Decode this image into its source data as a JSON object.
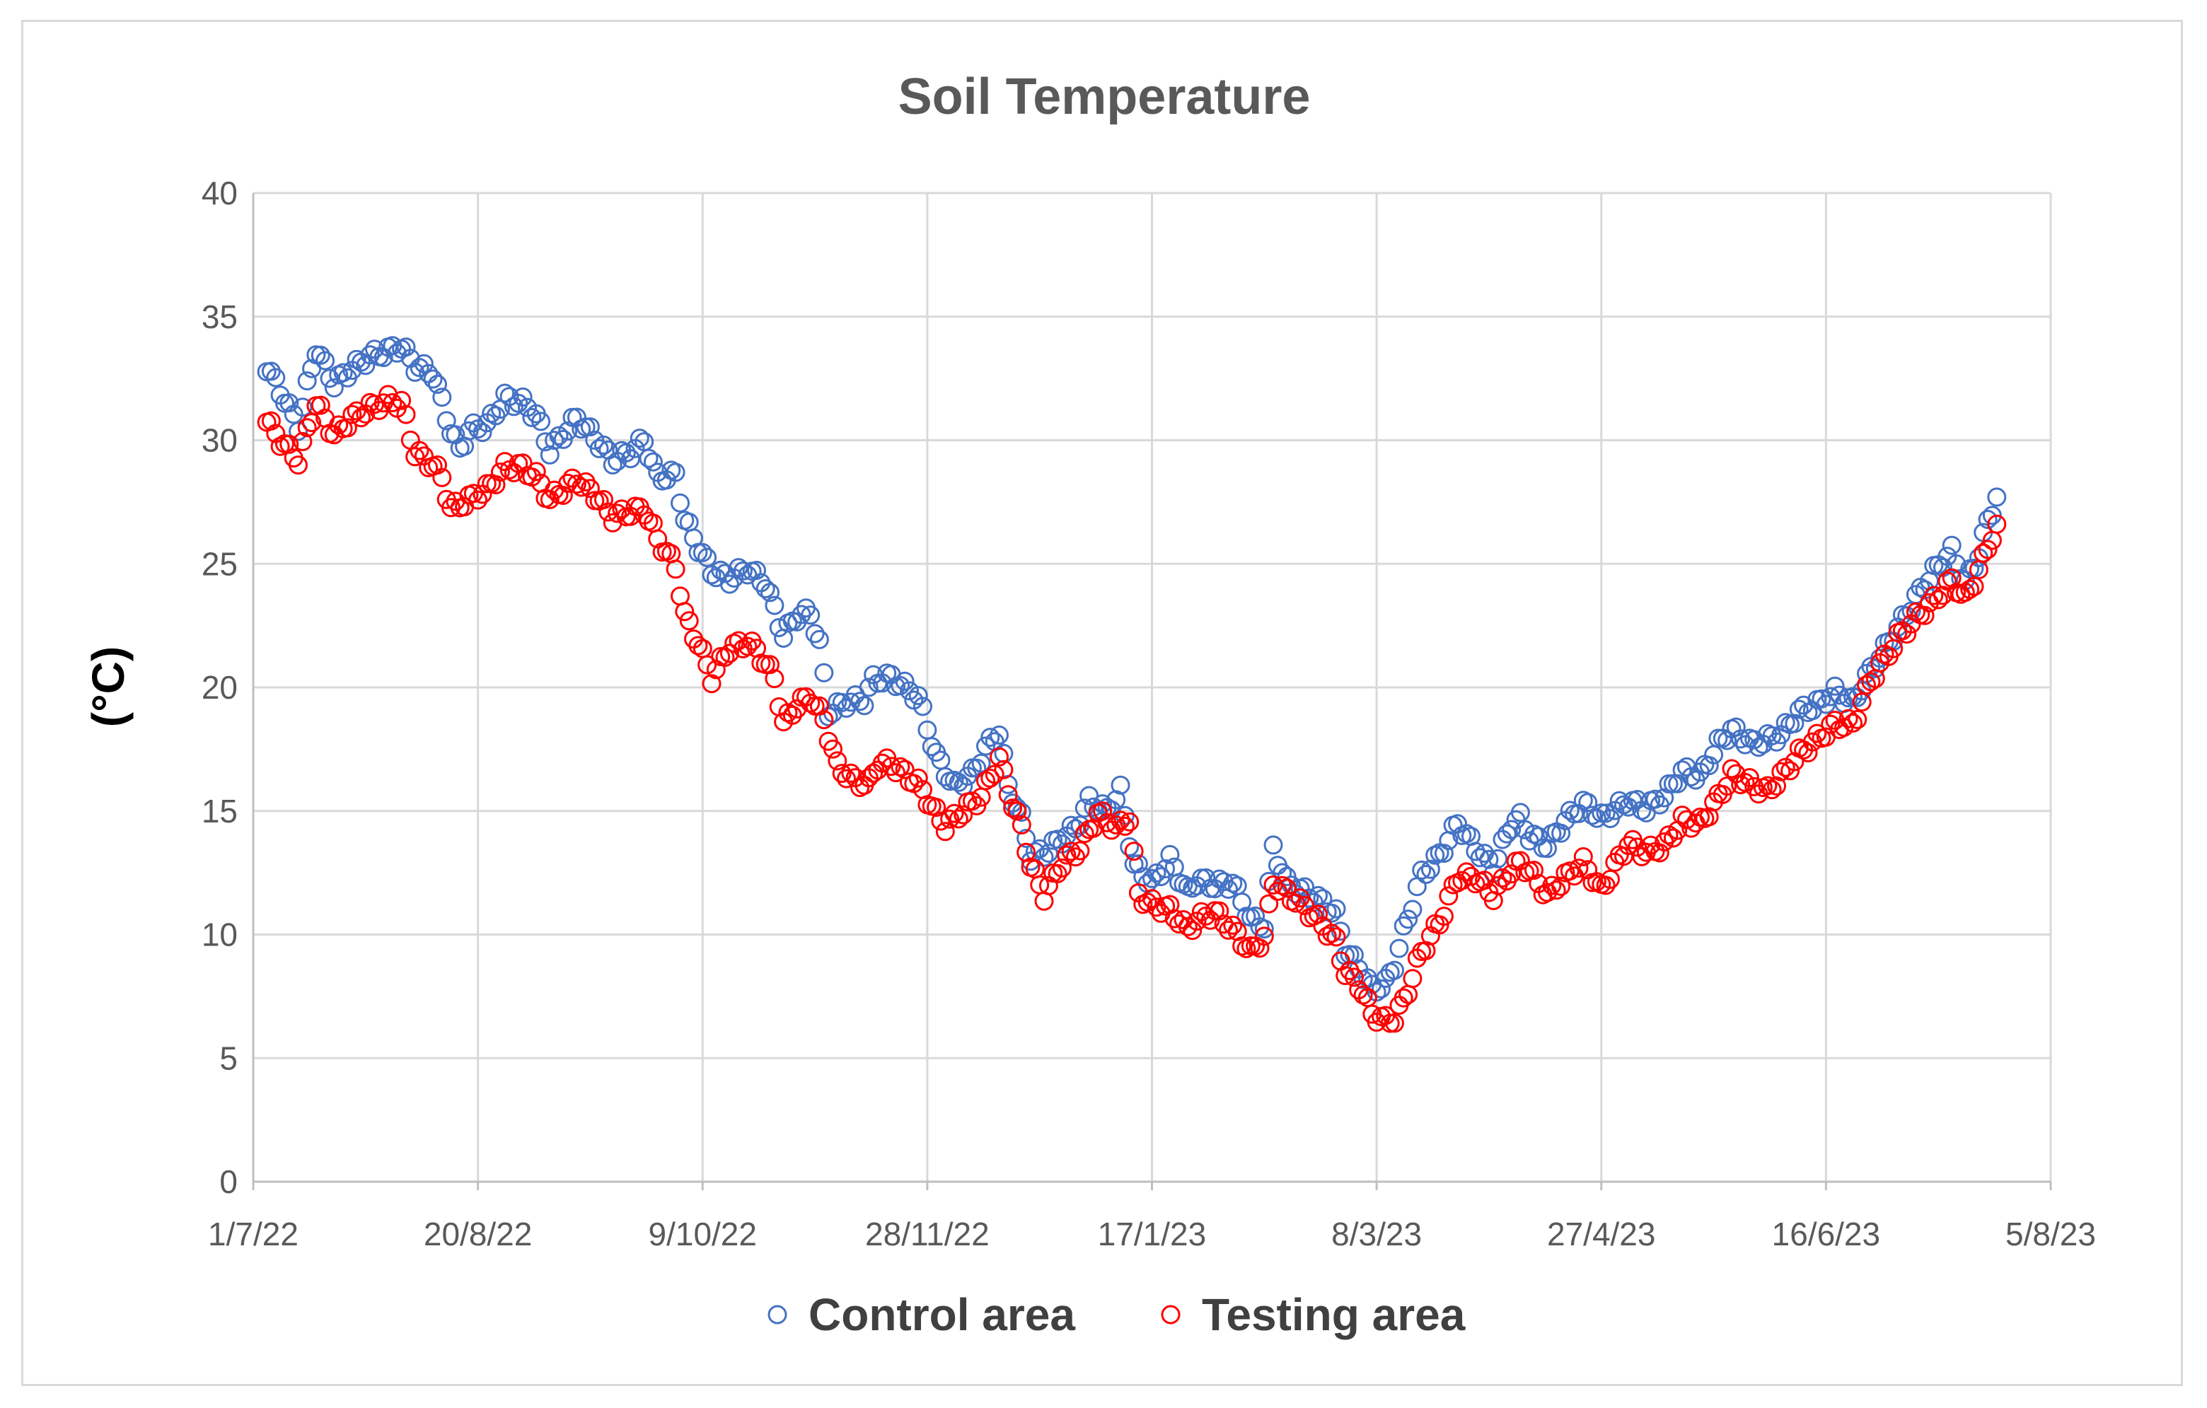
{
  "chart_data": {
    "type": "scatter",
    "title": "Soil Temperature",
    "xlabel": "",
    "ylabel": "(°C)",
    "xlim": [
      "1/7/22",
      "5/8/23"
    ],
    "xlim_days": [
      0,
      400
    ],
    "x_tick_interval_days": 50,
    "ylim": [
      0,
      40
    ],
    "y_ticks": [
      0,
      5,
      10,
      15,
      20,
      25,
      30,
      35,
      40
    ],
    "x_tick_labels": [
      "1/7/22",
      "20/8/22",
      "9/10/22",
      "28/11/22",
      "17/1/23",
      "8/3/23",
      "27/4/23",
      "16/6/23",
      "5/8/23"
    ],
    "grid": true,
    "legend_position": "bottom",
    "x_unit": "days since 1/7/22",
    "series": [
      {
        "name": "Control area",
        "color": "#4472c4",
        "keypoints": [
          [
            3,
            33
          ],
          [
            6,
            32
          ],
          [
            10,
            30.6
          ],
          [
            14,
            33.7
          ],
          [
            18,
            32.3
          ],
          [
            22,
            32.9
          ],
          [
            26,
            33.4
          ],
          [
            30,
            33.6
          ],
          [
            33,
            33.8
          ],
          [
            36,
            33
          ],
          [
            40,
            32.7
          ],
          [
            44,
            30.4
          ],
          [
            46,
            29.6
          ],
          [
            48,
            30.4
          ],
          [
            52,
            30.6
          ],
          [
            56,
            31.7
          ],
          [
            60,
            31.5
          ],
          [
            63,
            31
          ],
          [
            66,
            29.6
          ],
          [
            72,
            30.9
          ],
          [
            76,
            30.1
          ],
          [
            80,
            29.2
          ],
          [
            84,
            29.5
          ],
          [
            87,
            30
          ],
          [
            90,
            28.5
          ],
          [
            94,
            28.6
          ],
          [
            96,
            26.8
          ],
          [
            99,
            25.7
          ],
          [
            102,
            24.7
          ],
          [
            106,
            24.4
          ],
          [
            110,
            24.8
          ],
          [
            114,
            24.2
          ],
          [
            118,
            22.1
          ],
          [
            121,
            22.9
          ],
          [
            124,
            23
          ],
          [
            126,
            21.8
          ],
          [
            128,
            19
          ],
          [
            132,
            19.4
          ],
          [
            136,
            19.5
          ],
          [
            138,
            20.3
          ],
          [
            142,
            20.4
          ],
          [
            148,
            19.6
          ],
          [
            152,
            17.2
          ],
          [
            156,
            16
          ],
          [
            160,
            16.5
          ],
          [
            164,
            17.8
          ],
          [
            166,
            18.2
          ],
          [
            168,
            16
          ],
          [
            171,
            14.7
          ],
          [
            173,
            13.2
          ],
          [
            176,
            13.3
          ],
          [
            180,
            13.9
          ],
          [
            183,
            14.3
          ],
          [
            186,
            15.4
          ],
          [
            190,
            15
          ],
          [
            193,
            15.8
          ],
          [
            194,
            14.8
          ],
          [
            196,
            12.8
          ],
          [
            200,
            12.1
          ],
          [
            204,
            13
          ],
          [
            208,
            11.7
          ],
          [
            210,
            12.2
          ],
          [
            214,
            12
          ],
          [
            218,
            12.1
          ],
          [
            222,
            10.6
          ],
          [
            225,
            10.4
          ],
          [
            227,
            13.5
          ],
          [
            230,
            12.1
          ],
          [
            234,
            11.7
          ],
          [
            238,
            11.3
          ],
          [
            241,
            10.8
          ],
          [
            243,
            9.4
          ],
          [
            246,
            8.7
          ],
          [
            249,
            7.8
          ],
          [
            252,
            8
          ],
          [
            254,
            8.8
          ],
          [
            256,
            10.1
          ],
          [
            260,
            12.4
          ],
          [
            264,
            13.2
          ],
          [
            268,
            14.5
          ],
          [
            272,
            13.5
          ],
          [
            276,
            12.7
          ],
          [
            280,
            14.5
          ],
          [
            282,
            14.7
          ],
          [
            284,
            14
          ],
          [
            288,
            13.6
          ],
          [
            292,
            14.6
          ],
          [
            296,
            15.3
          ],
          [
            300,
            14.7
          ],
          [
            306,
            15.4
          ],
          [
            310,
            15.1
          ],
          [
            314,
            15.6
          ],
          [
            318,
            16.6
          ],
          [
            322,
            16.4
          ],
          [
            326,
            17.7
          ],
          [
            329,
            18.3
          ],
          [
            331,
            18
          ],
          [
            334,
            17.7
          ],
          [
            337,
            17.9
          ],
          [
            340,
            18.1
          ],
          [
            344,
            19
          ],
          [
            348,
            19.3
          ],
          [
            352,
            19.8
          ],
          [
            356,
            19.4
          ],
          [
            360,
            20.7
          ],
          [
            366,
            22.4
          ],
          [
            370,
            23.6
          ],
          [
            374,
            24.7
          ],
          [
            378,
            25.5
          ],
          [
            381,
            24.2
          ],
          [
            384,
            25.4
          ],
          [
            386,
            26.7
          ],
          [
            388,
            27.7
          ]
        ]
      },
      {
        "name": "Testing area",
        "color": "#ff0000",
        "keypoints": [
          [
            3,
            30.8
          ],
          [
            6,
            30
          ],
          [
            10,
            29.2
          ],
          [
            14,
            31.5
          ],
          [
            18,
            30.2
          ],
          [
            22,
            30.9
          ],
          [
            26,
            31.3
          ],
          [
            30,
            31.6
          ],
          [
            33,
            31.5
          ],
          [
            36,
            29.5
          ],
          [
            40,
            29
          ],
          [
            42,
            28.5
          ],
          [
            44,
            27.2
          ],
          [
            48,
            27.6
          ],
          [
            52,
            28
          ],
          [
            56,
            28.9
          ],
          [
            60,
            28.9
          ],
          [
            63,
            28.5
          ],
          [
            66,
            27.6
          ],
          [
            72,
            28.4
          ],
          [
            76,
            27.8
          ],
          [
            80,
            26.9
          ],
          [
            84,
            27.1
          ],
          [
            87,
            27.2
          ],
          [
            90,
            26
          ],
          [
            94,
            24.9
          ],
          [
            96,
            22.9
          ],
          [
            99,
            21.8
          ],
          [
            102,
            20.4
          ],
          [
            106,
            21.6
          ],
          [
            110,
            21.8
          ],
          [
            112,
            21.5
          ],
          [
            116,
            20.4
          ],
          [
            118,
            18.5
          ],
          [
            121,
            19.3
          ],
          [
            124,
            19.6
          ],
          [
            127,
            18.7
          ],
          [
            130,
            16.8
          ],
          [
            134,
            16.2
          ],
          [
            137,
            16.1
          ],
          [
            139,
            16.9
          ],
          [
            142,
            16.9
          ],
          [
            148,
            16.1
          ],
          [
            152,
            14.9
          ],
          [
            154,
            14.4
          ],
          [
            158,
            15
          ],
          [
            162,
            15.6
          ],
          [
            166,
            17.1
          ],
          [
            168,
            15.8
          ],
          [
            171,
            14.3
          ],
          [
            173,
            12.8
          ],
          [
            176,
            11.6
          ],
          [
            180,
            12.9
          ],
          [
            184,
            13.5
          ],
          [
            188,
            14.9
          ],
          [
            192,
            14.3
          ],
          [
            195,
            14.7
          ],
          [
            197,
            11.6
          ],
          [
            200,
            11.2
          ],
          [
            204,
            11
          ],
          [
            208,
            10.2
          ],
          [
            210,
            10.6
          ],
          [
            214,
            10.9
          ],
          [
            218,
            10.2
          ],
          [
            222,
            9.3
          ],
          [
            225,
            9.9
          ],
          [
            227,
            12.1
          ],
          [
            230,
            11.7
          ],
          [
            234,
            11.1
          ],
          [
            238,
            10.4
          ],
          [
            241,
            9.7
          ],
          [
            243,
            8.5
          ],
          [
            246,
            8
          ],
          [
            249,
            6.8
          ],
          [
            252,
            6.5
          ],
          [
            254,
            6.6
          ],
          [
            256,
            7.3
          ],
          [
            260,
            9.3
          ],
          [
            264,
            10.5
          ],
          [
            268,
            12.3
          ],
          [
            272,
            12.3
          ],
          [
            276,
            11.6
          ],
          [
            280,
            12.6
          ],
          [
            282,
            12.9
          ],
          [
            284,
            12.6
          ],
          [
            288,
            11.6
          ],
          [
            292,
            12.3
          ],
          [
            296,
            12.9
          ],
          [
            300,
            11.8
          ],
          [
            306,
            13.7
          ],
          [
            310,
            13.3
          ],
          [
            314,
            13.6
          ],
          [
            318,
            14.6
          ],
          [
            322,
            14.5
          ],
          [
            326,
            15.5
          ],
          [
            329,
            16.5
          ],
          [
            331,
            16.3
          ],
          [
            334,
            16
          ],
          [
            337,
            15.8
          ],
          [
            340,
            16.4
          ],
          [
            344,
            17.3
          ],
          [
            348,
            17.9
          ],
          [
            352,
            18.5
          ],
          [
            356,
            18.5
          ],
          [
            360,
            20.3
          ],
          [
            366,
            22
          ],
          [
            370,
            22.8
          ],
          [
            374,
            23.5
          ],
          [
            378,
            24.3
          ],
          [
            381,
            23.6
          ],
          [
            384,
            24.7
          ],
          [
            386,
            25.7
          ],
          [
            388,
            26.6
          ]
        ]
      }
    ]
  }
}
